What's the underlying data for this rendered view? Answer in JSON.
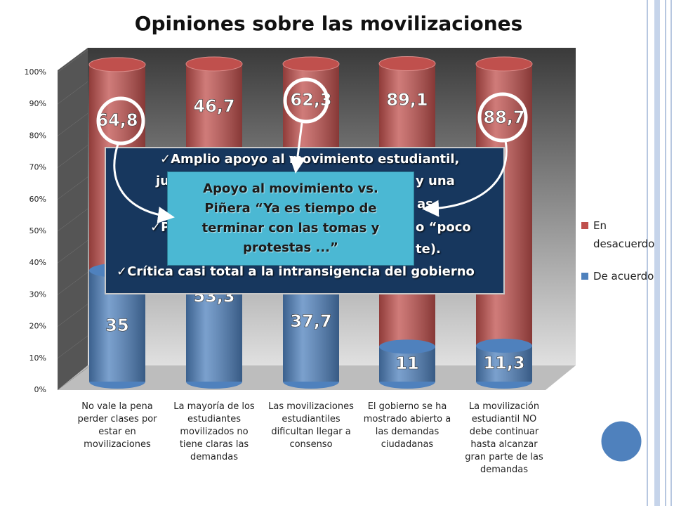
{
  "chart_data": {
    "type": "bar",
    "stacked": true,
    "title": "Opiniones sobre las movilizaciones",
    "categories": [
      "No vale la pena perder clases por estar en movilizaciones",
      "La mayoría de los estudiantes movilizados no tiene claras las demandas",
      "Las movilizaciones estudiantiles dificultan llegar a consenso",
      "El gobierno se ha mostrado abierto a las demandas ciudadanas",
      "La movilización estudiantil NO debe continuar hasta alcanzar gran parte de las demandas"
    ],
    "series": [
      {
        "name": "De acuerdo",
        "color": "#4f81bd",
        "values": [
          35,
          53.3,
          37.7,
          11,
          11.3
        ],
        "value_labels": [
          "35",
          "53,3",
          "37,7",
          "11",
          "11,3"
        ]
      },
      {
        "name": "En desacuerdo",
        "color": "#c0504d",
        "values": [
          64.8,
          46.7,
          62.3,
          89.1,
          88.7
        ],
        "value_labels": [
          "64,8",
          "46,7",
          "62,3",
          "89,1",
          "88,7"
        ]
      }
    ],
    "ylim": [
      0,
      100
    ],
    "yticks": [
      {
        "value": 0,
        "label": "0%"
      },
      {
        "value": 10,
        "label": "10%"
      },
      {
        "value": 20,
        "label": "20%"
      },
      {
        "value": 30,
        "label": "30%"
      },
      {
        "value": 40,
        "label": "40%"
      },
      {
        "value": 50,
        "label": "50%"
      },
      {
        "value": 60,
        "label": "60%"
      },
      {
        "value": 70,
        "label": "70%"
      },
      {
        "value": 80,
        "label": "80%"
      },
      {
        "value": 90,
        "label": "90%"
      },
      {
        "value": 100,
        "label": "100%"
      }
    ],
    "legend": "right",
    "summary_fragments": [
      "✓Amplio apoyo al movimiento estudiantil,",
      "ju",
      "y una",
      "as.",
      "✓Pe",
      "o “poco",
      "te).",
      "✓Crítica casi total a la intransigencia del gobierno"
    ],
    "callout": [
      "Apoyo al movimiento vs.",
      "Piñera “Ya es tiempo de",
      "terminar con las tomas y",
      "protestas ...”"
    ]
  }
}
